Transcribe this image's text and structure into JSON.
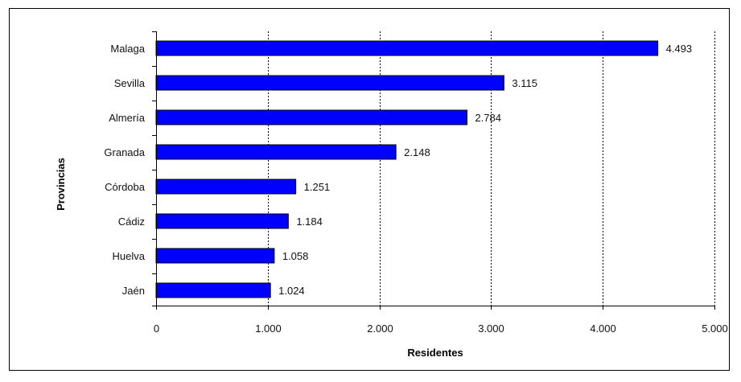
{
  "chart_data": {
    "type": "bar",
    "orientation": "horizontal",
    "categories": [
      "Malaga",
      "Sevilla",
      "Almería",
      "Granada",
      "Córdoba",
      "Cádiz",
      "Huelva",
      "Jaén"
    ],
    "values": [
      4493,
      3115,
      2784,
      2148,
      1251,
      1184,
      1058,
      1024
    ],
    "value_labels": [
      "4.493",
      "3.115",
      "2.784",
      "2.148",
      "1.251",
      "1.184",
      "1.058",
      "1.024"
    ],
    "xlabel": "Residentes",
    "ylabel": "Provincias",
    "xlim": [
      0,
      5000
    ],
    "xticks": [
      0,
      1000,
      2000,
      3000,
      4000,
      5000
    ],
    "xtick_labels": [
      "0",
      "1.000",
      "2.000",
      "3.000",
      "4.000",
      "5.000"
    ],
    "grid": "vertical dashed",
    "legend": "none",
    "colors": {
      "bar_fill": "#0000ff",
      "bar_stroke": "#000000",
      "grid": "#000000"
    }
  }
}
